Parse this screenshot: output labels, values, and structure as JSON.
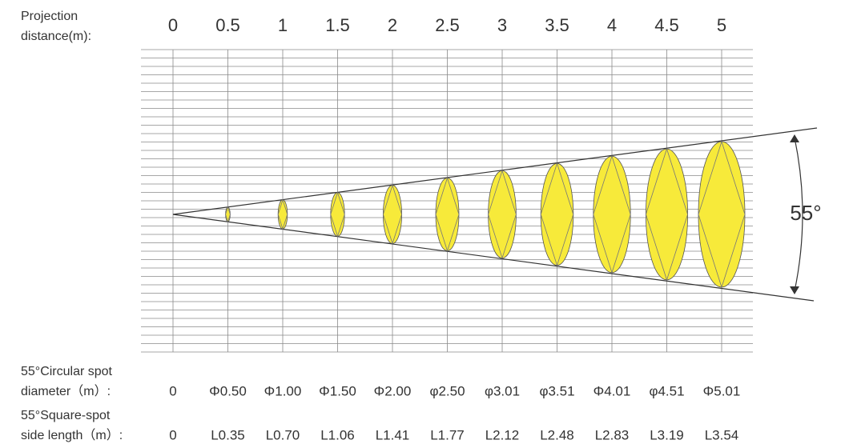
{
  "distance_row": {
    "label_lines": [
      "Projection",
      "distance(m):"
    ],
    "values": [
      0,
      0.5,
      1,
      1.5,
      2,
      2.5,
      3,
      3.5,
      4,
      4.5,
      5
    ]
  },
  "angle_label": "55°",
  "circular_row": {
    "label_lines": [
      "55°Circular spot",
      "diameter（m）:"
    ],
    "values": [
      "0",
      "Φ0.50",
      "Φ1.00",
      "Φ1.50",
      "Φ2.00",
      "φ2.50",
      "φ3.01",
      "φ3.51",
      "Φ4.01",
      "φ4.51",
      "Φ5.01"
    ]
  },
  "square_row": {
    "label_lines": [
      "55°Square-spot",
      "side length（m）:"
    ],
    "values": [
      "0",
      "L0.35",
      "L0.70",
      "L1.06",
      "L1.41",
      "L1.77",
      "L2.12",
      "L2.48",
      "L2.83",
      "L3.19",
      "L3.54"
    ]
  }
}
